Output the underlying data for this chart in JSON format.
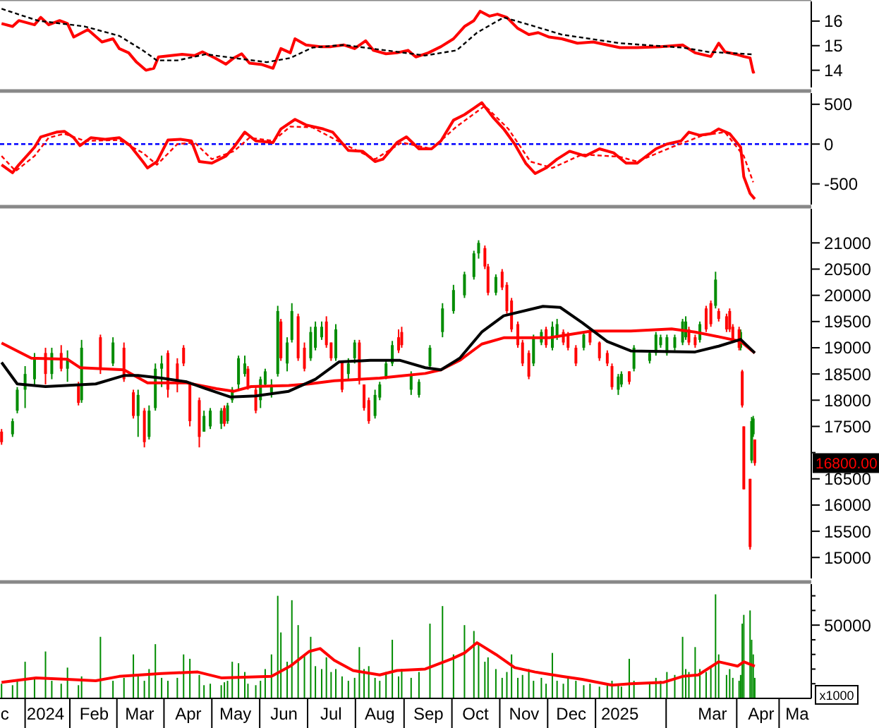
{
  "chart_data": [
    {
      "type": "line",
      "xlim": [
        "2023-12-17",
        "2025-05-17"
      ],
      "ylim": [
        13.3,
        16.8
      ],
      "yticks": [
        14,
        15,
        16
      ],
      "tick_labels": "y",
      "series": [
        {
          "color": "#ff0000",
          "x": [
            "2023-12-18",
            "2023-12-25",
            "2023-12-29",
            "2024-01-08",
            "2024-01-12",
            "2024-01-17",
            "2024-01-24",
            "2024-01-29",
            "2024-02-02",
            "2024-02-11",
            "2024-02-20",
            "2024-02-27",
            "2024-03-02",
            "2024-03-08",
            "2024-03-13",
            "2024-03-19",
            "2024-03-24",
            "2024-03-27",
            "2024-04-04",
            "2024-04-11",
            "2024-04-19",
            "2024-04-24",
            "2024-05-02",
            "2024-05-09",
            "2024-05-14",
            "2024-05-19",
            "2024-05-24",
            "2024-06-01",
            "2024-06-08",
            "2024-06-13",
            "2024-06-19",
            "2024-06-22",
            "2024-06-29",
            "2024-07-08",
            "2024-07-15",
            "2024-07-23",
            "2024-07-30",
            "2024-08-06",
            "2024-08-11",
            "2024-08-19",
            "2024-08-26",
            "2024-09-02",
            "2024-09-07",
            "2024-09-15",
            "2024-09-23",
            "2024-10-01",
            "2024-10-08",
            "2024-10-14",
            "2024-10-18",
            "2024-10-24",
            "2024-10-29",
            "2024-11-04",
            "2024-11-11",
            "2024-11-18",
            "2024-11-24",
            "2024-12-01",
            "2024-12-09",
            "2024-12-19",
            "2024-12-29",
            "2025-01-15",
            "2025-01-26",
            "2025-02-10",
            "2025-02-24",
            "2025-03-04",
            "2025-03-14",
            "2025-03-19",
            "2025-03-23",
            "2025-03-30",
            "2025-04-04",
            "2025-04-08",
            "2025-04-10",
            "2025-04-11"
          ],
          "values": [
            15.9,
            15.78,
            16.02,
            15.85,
            16.15,
            15.85,
            16.02,
            15.9,
            15.35,
            15.65,
            15.15,
            15.28,
            14.88,
            14.71,
            14.33,
            14.0,
            14.08,
            14.54,
            14.6,
            14.65,
            14.6,
            14.75,
            14.5,
            14.25,
            14.5,
            14.67,
            14.29,
            14.23,
            14.08,
            14.88,
            14.71,
            15.28,
            15.03,
            14.96,
            14.96,
            15.03,
            14.88,
            15.2,
            14.81,
            14.67,
            14.71,
            14.81,
            14.54,
            14.71,
            14.96,
            15.28,
            15.78,
            16.02,
            16.4,
            16.2,
            16.28,
            16.15,
            15.7,
            15.45,
            15.53,
            15.35,
            15.28,
            15.1,
            15.15,
            14.92,
            14.92,
            14.96,
            15.03,
            14.71,
            14.56,
            15.1,
            14.75,
            14.65,
            14.56,
            14.5,
            13.92,
            13.94
          ]
        },
        {
          "color": "#000000",
          "line_style": "dashed",
          "x": [
            "2023-12-18",
            "2024-01-10",
            "2024-02-09",
            "2024-03-02",
            "2024-03-17",
            "2024-03-26",
            "2024-04-08",
            "2024-04-26",
            "2024-05-14",
            "2024-06-04",
            "2024-06-19",
            "2024-07-03",
            "2024-07-23",
            "2024-08-26",
            "2024-09-13",
            "2024-10-03",
            "2024-10-16",
            "2024-11-02",
            "2024-11-22",
            "2024-12-09",
            "2025-01-15",
            "2025-02-24",
            "2025-03-12",
            "2025-04-09"
          ],
          "values": [
            16.5,
            16.02,
            15.78,
            15.4,
            14.81,
            14.4,
            14.4,
            14.65,
            14.5,
            14.33,
            14.5,
            14.92,
            15.03,
            14.75,
            14.6,
            14.81,
            15.53,
            16.15,
            15.78,
            15.45,
            15.1,
            14.92,
            14.75,
            14.65
          ]
        }
      ]
    },
    {
      "type": "line",
      "xlim": [
        "2023-12-17",
        "2025-05-17"
      ],
      "ylim": [
        -760,
        640
      ],
      "yticks": [
        -500,
        0,
        500
      ],
      "tick_labels": "y",
      "ref_lines": [
        {
          "axis": "y",
          "value": 0,
          "color": "#0000ff",
          "line_style": "dashed"
        }
      ],
      "series": [
        {
          "color": "#ff0000",
          "x": [
            "2023-12-18",
            "2023-12-25",
            "2023-12-29",
            "2024-01-08",
            "2024-01-12",
            "2024-01-22",
            "2024-01-27",
            "2024-02-02",
            "2024-02-06",
            "2024-02-13",
            "2024-02-22",
            "2024-03-02",
            "2024-03-09",
            "2024-03-17",
            "2024-03-20",
            "2024-03-26",
            "2024-04-02",
            "2024-04-10",
            "2024-04-17",
            "2024-04-22",
            "2024-04-30",
            "2024-05-09",
            "2024-05-14",
            "2024-05-21",
            "2024-05-28",
            "2024-06-08",
            "2024-06-13",
            "2024-06-22",
            "2024-06-29",
            "2024-07-10",
            "2024-07-16",
            "2024-07-26",
            "2024-08-04",
            "2024-08-12",
            "2024-08-17",
            "2024-08-26",
            "2024-09-01",
            "2024-09-09",
            "2024-09-17",
            "2024-09-23",
            "2024-10-01",
            "2024-10-08",
            "2024-10-14",
            "2024-10-19",
            "2024-10-26",
            "2024-11-02",
            "2024-11-09",
            "2024-11-16",
            "2024-11-22",
            "2024-11-29",
            "2024-12-06",
            "2024-12-14",
            "2024-12-24",
            "2025-01-02",
            "2025-01-11",
            "2025-01-19",
            "2025-01-26",
            "2025-02-07",
            "2025-02-14",
            "2025-02-23",
            "2025-02-28",
            "2025-03-07",
            "2025-03-14",
            "2025-03-19",
            "2025-03-26",
            "2025-04-02",
            "2025-04-04",
            "2025-04-08",
            "2025-04-11"
          ],
          "values": [
            -260,
            -360,
            -260,
            -40,
            90,
            150,
            160,
            80,
            -20,
            80,
            60,
            80,
            -20,
            -220,
            -300,
            -220,
            50,
            60,
            40,
            -220,
            -240,
            -150,
            -40,
            150,
            40,
            20,
            190,
            310,
            240,
            190,
            150,
            -80,
            -90,
            -220,
            -190,
            20,
            90,
            -60,
            -60,
            40,
            300,
            370,
            450,
            520,
            340,
            190,
            0,
            -240,
            -370,
            -300,
            -190,
            -90,
            -150,
            -60,
            -110,
            -240,
            -240,
            -60,
            0,
            40,
            150,
            110,
            130,
            190,
            130,
            -40,
            -410,
            -620,
            -690
          ]
        },
        {
          "color": "#ff0000",
          "line_style": "dashed",
          "x": [
            "2023-12-18",
            "2023-12-27",
            "2024-01-08",
            "2024-01-17",
            "2024-01-27",
            "2024-02-09",
            "2024-03-02",
            "2024-03-17",
            "2024-03-26",
            "2024-04-08",
            "2024-04-19",
            "2024-04-30",
            "2024-05-14",
            "2024-05-24",
            "2024-06-08",
            "2024-06-19",
            "2024-07-03",
            "2024-07-23",
            "2024-08-12",
            "2024-08-29",
            "2024-09-17",
            "2024-10-03",
            "2024-10-21",
            "2024-11-05",
            "2024-11-19",
            "2024-12-03",
            "2024-12-22",
            "2025-01-15",
            "2025-01-26",
            "2025-02-17",
            "2025-03-09",
            "2025-03-23",
            "2025-04-04",
            "2025-04-10"
          ],
          "values": [
            -150,
            -340,
            -150,
            80,
            130,
            40,
            50,
            -110,
            -260,
            0,
            20,
            -190,
            -90,
            80,
            40,
            220,
            210,
            0,
            -190,
            20,
            -60,
            220,
            480,
            190,
            -220,
            -300,
            -130,
            -160,
            -220,
            -40,
            110,
            150,
            -150,
            -480
          ]
        }
      ]
    },
    {
      "type": "candlestick",
      "xlim": [
        "2023-12-17",
        "2025-05-17"
      ],
      "ylim": [
        14600,
        21650
      ],
      "yticks": [
        15000,
        15500,
        16000,
        16500,
        {
          "value": 17000,
          "label": null
        },
        17500,
        18000,
        18500,
        19000,
        19500,
        20000,
        20500,
        21000
      ],
      "tick_labels": "y",
      "annotations": [
        "16800.00"
      ],
      "series": [
        {
          "color": "#008c00",
          "x": [
            "2023-12-25",
            "2023-12-28",
            "2024-01-02",
            "2024-01-08",
            "2024-01-19",
            "2024-01-29",
            "2024-02-07",
            "2024-02-27",
            "2024-03-14",
            "2024-03-21",
            "2024-03-25",
            "2024-03-29",
            "2024-04-25",
            "2024-04-29",
            "2024-05-06",
            "2024-05-10",
            "2024-05-13",
            "2024-05-17",
            "2024-05-21",
            "2024-05-31",
            "2024-06-03",
            "2024-06-07",
            "2024-06-11",
            "2024-06-17",
            "2024-06-20",
            "2024-07-02",
            "2024-07-05",
            "2024-07-09",
            "2024-07-18",
            "2024-07-26",
            "2024-07-30",
            "2024-08-12",
            "2024-08-15",
            "2024-08-19",
            "2024-08-23",
            "2024-09-04",
            "2024-09-09",
            "2024-09-16",
            "2024-09-24",
            "2024-10-01",
            "2024-10-08",
            "2024-10-14",
            "2024-10-17",
            "2024-10-28",
            "2024-11-21",
            "2024-11-26",
            "2024-12-03",
            "2024-12-06",
            "2024-12-23",
            "2025-01-14",
            "2025-01-16",
            "2025-01-24",
            "2025-02-03",
            "2025-02-07",
            "2025-02-10",
            "2025-02-14",
            "2025-02-19",
            "2025-02-24",
            "2025-02-26",
            "2025-03-07",
            "2025-03-17",
            "2025-04-02",
            "2025-04-09",
            "2025-04-10"
          ],
          "ohlc": [
            [
              17350,
              17650,
              17300,
              17600
            ],
            [
              17800,
              18250,
              17750,
              18200
            ],
            [
              18200,
              18650,
              17850,
              18500
            ],
            [
              18400,
              18900,
              18300,
              18800
            ],
            [
              18500,
              19000,
              18400,
              18900
            ],
            [
              18600,
              18950,
              18350,
              18800
            ],
            [
              18000,
              19150,
              17950,
              19000
            ],
            [
              18700,
              19200,
              18650,
              19100
            ],
            [
              17700,
              18200,
              17300,
              18100
            ],
            [
              17300,
              17900,
              17250,
              17800
            ],
            [
              17850,
              18700,
              17800,
              18600
            ],
            [
              18600,
              18850,
              18250,
              18700
            ],
            [
              17400,
              17800,
              17400,
              17700
            ],
            [
              17500,
              17850,
              17450,
              17800
            ],
            [
              17550,
              17850,
              17450,
              17800
            ],
            [
              17600,
              17950,
              17550,
              17900
            ],
            [
              18000,
              18250,
              17950,
              18200
            ],
            [
              18300,
              18850,
              18200,
              18800
            ],
            [
              18500,
              18850,
              18450,
              18700
            ],
            [
              18000,
              18450,
              17850,
              18400
            ],
            [
              18300,
              18600,
              18250,
              18550
            ],
            [
              18150,
              18400,
              18050,
              18300
            ],
            [
              18500,
              19800,
              18450,
              19700
            ],
            [
              18700,
              19200,
              18550,
              19100
            ],
            [
              19150,
              19850,
              19100,
              19700
            ],
            [
              18800,
              19400,
              18750,
              19300
            ],
            [
              19000,
              19500,
              18950,
              19400
            ],
            [
              19200,
              19500,
              19150,
              19400
            ],
            [
              18800,
              19450,
              18750,
              19350
            ],
            [
              18500,
              18800,
              18400,
              18700
            ],
            [
              18800,
              19150,
              18700,
              19100
            ],
            [
              17700,
              18200,
              17650,
              18100
            ],
            [
              18050,
              18350,
              18000,
              18300
            ],
            [
              18450,
              18750,
              18400,
              18700
            ],
            [
              18700,
              19130,
              18650,
              19050
            ],
            [
              18200,
              18550,
              18100,
              18500
            ],
            [
              18100,
              18400,
              18050,
              18350
            ],
            [
              18650,
              19050,
              18600,
              19000
            ],
            [
              19300,
              19850,
              19200,
              19750
            ],
            [
              19700,
              20200,
              19650,
              20100
            ],
            [
              20000,
              20450,
              19950,
              20400
            ],
            [
              20350,
              20850,
              20300,
              20800
            ],
            [
              20800,
              21050,
              20700,
              21000
            ],
            [
              20050,
              20400,
              20000,
              20350
            ],
            [
              18700,
              19250,
              18650,
              19200
            ],
            [
              19100,
              19350,
              19050,
              19300
            ],
            [
              19000,
              19500,
              18950,
              19400
            ],
            [
              19200,
              19550,
              19150,
              19450
            ],
            [
              19000,
              19300,
              18950,
              19250
            ],
            [
              18200,
              18500,
              18100,
              18450
            ],
            [
              18300,
              18550,
              18250,
              18500
            ],
            [
              18600,
              19050,
              18550,
              19000
            ],
            [
              18750,
              18950,
              18700,
              18900
            ],
            [
              18900,
              19300,
              18850,
              19250
            ],
            [
              19050,
              19250,
              19000,
              19200
            ],
            [
              18900,
              19250,
              18850,
              19200
            ],
            [
              19000,
              19250,
              18950,
              19200
            ],
            [
              19100,
              19550,
              19050,
              19500
            ],
            [
              19200,
              19600,
              19150,
              19500
            ],
            [
              19150,
              19500,
              19100,
              19450
            ],
            [
              19800,
              20450,
              19750,
              20300
            ],
            [
              19000,
              19350,
              18950,
              19300
            ],
            [
              16850,
              17680,
              16800,
              17600
            ],
            [
              17350,
              17700,
              17300,
              17650
            ]
          ]
        },
        {
          "color": "#ff0000",
          "x": [
            "2023-12-18",
            "2024-01-15",
            "2024-01-25",
            "2024-02-05",
            "2024-02-19",
            "2024-03-05",
            "2024-03-11",
            "2024-03-18",
            "2024-04-02",
            "2024-04-08",
            "2024-04-12",
            "2024-04-16",
            "2024-04-22",
            "2024-05-08",
            "2024-05-23",
            "2024-05-28",
            "2024-06-13",
            "2024-06-24",
            "2024-06-28",
            "2024-07-12",
            "2024-07-15",
            "2024-07-22",
            "2024-08-02",
            "2024-08-05",
            "2024-08-08",
            "2024-08-27",
            "2024-08-29",
            "2024-10-21",
            "2024-10-23",
            "2024-11-01",
            "2024-11-04",
            "2024-11-07",
            "2024-11-11",
            "2024-11-14",
            "2024-11-18",
            "2024-11-29",
            "2024-12-10",
            "2024-12-13",
            "2024-12-18",
            "2024-12-27",
            "2025-01-02",
            "2025-01-07",
            "2025-01-10",
            "2025-01-21",
            "2025-02-28",
            "2025-03-04",
            "2025-03-11",
            "2025-03-14",
            "2025-03-19",
            "2025-03-24",
            "2025-03-26",
            "2025-03-28",
            "2025-04-01",
            "2025-04-03",
            "2025-04-04",
            "2025-04-08",
            "2025-04-11"
          ],
          "ohlc": [
            [
              17400,
              17450,
              17150,
              17200
            ],
            [
              18900,
              19000,
              18300,
              18500
            ],
            [
              18900,
              19050,
              18550,
              18600
            ],
            [
              18300,
              18350,
              17900,
              17950
            ],
            [
              19200,
              19250,
              18500,
              18600
            ],
            [
              19000,
              19100,
              18350,
              18400
            ],
            [
              18150,
              18200,
              17650,
              17700
            ],
            [
              17800,
              17850,
              17100,
              17200
            ],
            [
              18900,
              18950,
              18050,
              18200
            ],
            [
              18700,
              18800,
              18150,
              18300
            ],
            [
              19000,
              19050,
              18650,
              18700
            ],
            [
              18300,
              18350,
              17500,
              17600
            ],
            [
              18000,
              18050,
              17100,
              17300
            ],
            [
              17850,
              17900,
              17500,
              17550
            ],
            [
              18600,
              18650,
              18200,
              18250
            ],
            [
              18200,
              18250,
              17750,
              17800
            ],
            [
              19500,
              19550,
              18750,
              18800
            ],
            [
              19600,
              19650,
              18750,
              18800
            ],
            [
              19000,
              19100,
              18550,
              18600
            ],
            [
              19500,
              19600,
              19000,
              19050
            ],
            [
              19100,
              19100,
              18750,
              18800
            ],
            [
              18750,
              18750,
              18150,
              18200
            ],
            [
              19100,
              19150,
              18300,
              18400
            ],
            [
              18300,
              18300,
              17800,
              17850
            ],
            [
              18000,
              18050,
              17550,
              17600
            ],
            [
              19200,
              19350,
              18900,
              18950
            ],
            [
              19300,
              19400,
              19000,
              19050
            ],
            [
              20900,
              20950,
              20500,
              20550
            ],
            [
              20550,
              20600,
              20000,
              20050
            ],
            [
              20450,
              20500,
              20100,
              20150
            ],
            [
              20200,
              20250,
              19650,
              19700
            ],
            [
              19900,
              19950,
              19300,
              19350
            ],
            [
              19450,
              19500,
              19000,
              19050
            ],
            [
              19100,
              19150,
              18650,
              18700
            ],
            [
              18900,
              18950,
              18400,
              18450
            ],
            [
              19350,
              19400,
              19000,
              19050
            ],
            [
              19300,
              19350,
              19050,
              19100
            ],
            [
              19250,
              19300,
              18950,
              19000
            ],
            [
              19000,
              19050,
              18650,
              18700
            ],
            [
              19300,
              19350,
              19050,
              19100
            ],
            [
              19100,
              19120,
              18750,
              18800
            ],
            [
              18900,
              18950,
              18650,
              18700
            ],
            [
              18650,
              18700,
              18200,
              18250
            ],
            [
              18550,
              18550,
              18300,
              18350
            ],
            [
              19350,
              19400,
              19050,
              19100
            ],
            [
              19200,
              19250,
              19000,
              19050
            ],
            [
              19750,
              19800,
              19300,
              19350
            ],
            [
              19850,
              19900,
              19400,
              19450
            ],
            [
              19700,
              19750,
              19500,
              19550
            ],
            [
              19600,
              19650,
              19300,
              19350
            ],
            [
              19700,
              19750,
              19300,
              19350
            ],
            [
              19400,
              19450,
              19100,
              19150
            ],
            [
              19350,
              19400,
              18950,
              19000
            ],
            [
              18550,
              18580,
              17860,
              17900
            ],
            [
              17500,
              17500,
              16300,
              16300
            ],
            [
              16500,
              16500,
              15150,
              15200
            ],
            [
              17250,
              17250,
              16750,
              16800
            ]
          ]
        },
        {
          "type": "line",
          "color": "#ff0000",
          "x": [
            "2023-12-18",
            "2024-01-06",
            "2024-01-29",
            "2024-02-06",
            "2024-03-05",
            "2024-03-20",
            "2024-04-14",
            "2024-05-03",
            "2024-05-14",
            "2024-05-25",
            "2024-06-18",
            "2024-07-01",
            "2024-07-17",
            "2024-08-15",
            "2024-08-28",
            "2024-09-13",
            "2024-09-23",
            "2024-10-05",
            "2024-10-19",
            "2024-11-02",
            "2024-12-01",
            "2024-12-28",
            "2025-01-22",
            "2025-02-17",
            "2025-03-04",
            "2025-03-19",
            "2025-04-02",
            "2025-04-11"
          ],
          "values": [
            19090,
            18800,
            18780,
            18620,
            18580,
            18330,
            18330,
            18220,
            18170,
            18260,
            18280,
            18310,
            18370,
            18420,
            18460,
            18510,
            18580,
            18760,
            19070,
            19190,
            19190,
            19320,
            19320,
            19360,
            19300,
            19210,
            19120,
            18900
          ]
        },
        {
          "type": "line",
          "color": "#000000",
          "x": [
            "2023-12-18",
            "2023-12-28",
            "2024-01-15",
            "2024-02-16",
            "2024-03-05",
            "2024-03-14",
            "2024-03-29",
            "2024-04-14",
            "2024-04-26",
            "2024-05-12",
            "2024-05-28",
            "2024-06-18",
            "2024-07-05",
            "2024-07-20",
            "2024-08-09",
            "2024-08-28",
            "2024-09-13",
            "2024-09-23",
            "2024-10-05",
            "2024-10-19",
            "2024-11-02",
            "2024-11-27",
            "2024-12-08",
            "2024-12-22",
            "2025-01-07",
            "2025-01-22",
            "2025-03-04",
            "2025-03-19",
            "2025-04-02",
            "2025-04-11"
          ],
          "values": [
            18720,
            18310,
            18260,
            18310,
            18470,
            18470,
            18420,
            18350,
            18220,
            18060,
            18080,
            18170,
            18400,
            18730,
            18760,
            18760,
            18620,
            18580,
            18800,
            19300,
            19610,
            19790,
            19770,
            19480,
            19120,
            18940,
            18920,
            19030,
            19160,
            18900
          ]
        }
      ]
    },
    {
      "type": "bar",
      "xlim": [
        "2023-12-17",
        "2025-05-17"
      ],
      "ylim": [
        0,
        78000
      ],
      "yticks": [
        {
          "value": 10000,
          "label": null
        },
        {
          "value": 20000,
          "label": null
        },
        {
          "value": 30000,
          "label": null
        },
        {
          "value": 40000,
          "label": null
        },
        50000,
        {
          "value": 60000,
          "label": null
        },
        {
          "value": 70000,
          "label": null
        }
      ],
      "xticks": [
        {
          "value": "2023-12-20",
          "label": "c"
        },
        {
          "value": "2024-01-15",
          "label": "2024"
        },
        {
          "value": "2024-02-15",
          "label": "Feb"
        },
        {
          "value": "2024-03-15",
          "label": "Mar"
        },
        {
          "value": "2024-04-15",
          "label": "Apr"
        },
        {
          "value": "2024-05-15",
          "label": "May"
        },
        {
          "value": "2024-06-15",
          "label": "Jun"
        },
        {
          "value": "2024-07-15",
          "label": "Jul"
        },
        {
          "value": "2024-08-15",
          "label": "Aug"
        },
        {
          "value": "2024-09-15",
          "label": "Sep"
        },
        {
          "value": "2024-10-15",
          "label": "Oct"
        },
        {
          "value": "2024-11-15",
          "label": "Nov"
        },
        {
          "value": "2024-12-15",
          "label": "Dec"
        },
        {
          "value": "2025-01-15",
          "label": "2025"
        },
        {
          "value": "2025-03-15",
          "label": "Mar"
        },
        {
          "value": "2025-04-15",
          "label": "Apr"
        },
        {
          "value": "2025-05-08",
          "label": "Ma"
        }
      ],
      "annotations": [
        "x1000"
      ],
      "series": [
        {
          "color": "#008c00",
          "x": [
            "2023-12-18",
            "2023-12-25",
            "2023-12-28",
            "2024-01-02",
            "2024-01-08",
            "2024-01-15",
            "2024-01-19",
            "2024-01-25",
            "2024-01-29",
            "2024-02-05",
            "2024-02-07",
            "2024-02-19",
            "2024-02-27",
            "2024-03-05",
            "2024-03-11",
            "2024-03-14",
            "2024-03-18",
            "2024-03-21",
            "2024-03-25",
            "2024-03-29",
            "2024-04-02",
            "2024-04-08",
            "2024-04-12",
            "2024-04-16",
            "2024-04-22",
            "2024-04-25",
            "2024-04-29",
            "2024-05-06",
            "2024-05-08",
            "2024-05-10",
            "2024-05-13",
            "2024-05-17",
            "2024-05-21",
            "2024-05-23",
            "2024-05-28",
            "2024-05-31",
            "2024-06-03",
            "2024-06-07",
            "2024-06-11",
            "2024-06-13",
            "2024-06-17",
            "2024-06-20",
            "2024-06-24",
            "2024-06-28",
            "2024-07-02",
            "2024-07-05",
            "2024-07-09",
            "2024-07-12",
            "2024-07-15",
            "2024-07-18",
            "2024-07-22",
            "2024-07-26",
            "2024-07-30",
            "2024-08-02",
            "2024-08-05",
            "2024-08-08",
            "2024-08-12",
            "2024-08-15",
            "2024-08-19",
            "2024-08-23",
            "2024-08-27",
            "2024-08-29",
            "2024-09-04",
            "2024-09-09",
            "2024-09-16",
            "2024-09-24",
            "2024-10-01",
            "2024-10-08",
            "2024-10-14",
            "2024-10-17",
            "2024-10-21",
            "2024-10-23",
            "2024-10-28",
            "2024-11-01",
            "2024-11-04",
            "2024-11-07",
            "2024-11-11",
            "2024-11-14",
            "2024-11-18",
            "2024-11-21",
            "2024-11-26",
            "2024-11-29",
            "2024-12-03",
            "2024-12-06",
            "2024-12-10",
            "2024-12-13",
            "2024-12-18",
            "2024-12-23",
            "2024-12-27",
            "2025-01-02",
            "2025-01-07",
            "2025-01-10",
            "2025-01-14",
            "2025-01-16",
            "2025-01-21",
            "2025-01-24",
            "2025-02-03",
            "2025-02-07",
            "2025-02-10",
            "2025-02-14",
            "2025-02-19",
            "2025-02-24",
            "2025-02-26",
            "2025-02-28",
            "2025-03-04",
            "2025-03-07",
            "2025-03-11",
            "2025-03-14",
            "2025-03-17",
            "2025-03-19",
            "2025-03-24",
            "2025-03-26",
            "2025-03-28",
            "2025-04-01",
            "2025-04-02",
            "2025-04-03",
            "2025-04-04",
            "2025-04-08",
            "2025-04-09",
            "2025-04-10",
            "2025-04-11"
          ],
          "values": [
            10000,
            9000,
            12000,
            25000,
            14000,
            32000,
            12000,
            10000,
            21000,
            9000,
            15000,
            42000,
            12000,
            14000,
            30000,
            16000,
            12000,
            20000,
            37000,
            14000,
            12000,
            14000,
            30000,
            27000,
            16000,
            9000,
            10000,
            9000,
            11000,
            12000,
            25000,
            24000,
            18000,
            10000,
            9000,
            12000,
            20000,
            30000,
            70000,
            45000,
            25000,
            67000,
            50000,
            30000,
            42000,
            22000,
            20000,
            28000,
            18000,
            20000,
            15000,
            12000,
            14000,
            35000,
            20000,
            22000,
            14000,
            12000,
            18000,
            40000,
            15000,
            20000,
            14000,
            18000,
            51000,
            63000,
            30000,
            50000,
            46000,
            38000,
            25000,
            28000,
            20000,
            14000,
            18000,
            30000,
            14000,
            16000,
            20000,
            12000,
            14000,
            10000,
            31000,
            12000,
            10000,
            14000,
            12000,
            9000,
            10000,
            8000,
            9000,
            12000,
            10000,
            8000,
            27000,
            12000,
            10000,
            14000,
            12000,
            18000,
            16000,
            42000,
            20000,
            18000,
            35000,
            20000,
            18000,
            22000,
            71000,
            30000,
            16000,
            20000,
            14000,
            12000,
            16000,
            51000,
            57000,
            60000,
            40000,
            30000,
            14000
          ]
        },
        {
          "type": "line",
          "color": "#ff0000",
          "x": [
            "2023-12-18",
            "2024-01-09",
            "2024-01-29",
            "2024-02-16",
            "2024-03-02",
            "2024-03-29",
            "2024-04-21",
            "2024-05-06",
            "2024-06-07",
            "2024-06-19",
            "2024-07-01",
            "2024-07-08",
            "2024-07-17",
            "2024-07-29",
            "2024-08-15",
            "2024-08-26",
            "2024-09-13",
            "2024-09-30",
            "2024-10-08",
            "2024-10-16",
            "2024-10-28",
            "2024-11-09",
            "2024-11-22",
            "2024-12-09",
            "2024-12-22",
            "2025-01-10",
            "2025-01-22",
            "2025-02-12",
            "2025-02-24",
            "2025-03-06",
            "2025-03-19",
            "2025-03-31",
            "2025-04-04",
            "2025-04-11"
          ],
          "values": [
            11000,
            14000,
            13000,
            12000,
            15000,
            17000,
            18000,
            14000,
            15000,
            22000,
            32000,
            34000,
            26000,
            19000,
            16000,
            19000,
            20000,
            27000,
            31000,
            38000,
            30000,
            21000,
            18000,
            15000,
            13000,
            9000,
            10000,
            11000,
            15000,
            16000,
            25000,
            22000,
            25000,
            22000
          ]
        }
      ]
    }
  ]
}
